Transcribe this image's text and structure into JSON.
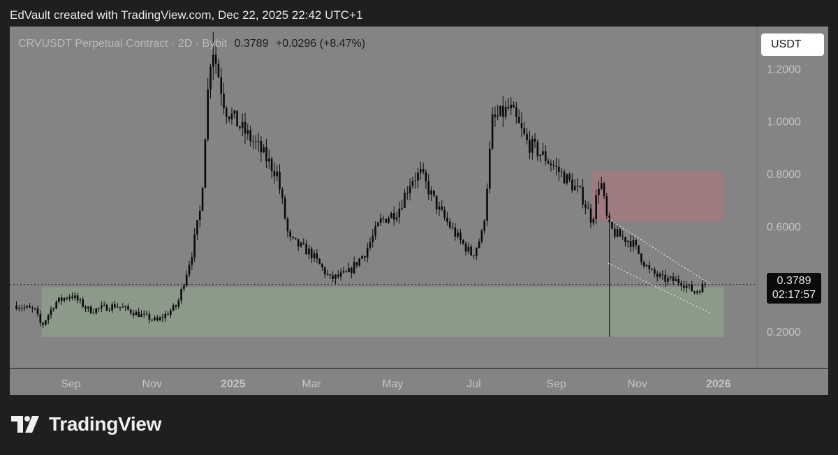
{
  "header": {
    "credit": "EdVault created with TradingView.com, Dec 22, 2025 22:42 UTC+1"
  },
  "legend": {
    "symbol": "CRVUSDT Perpetual Contract · 2D · Bybit",
    "price": "0.3789",
    "change": "+0.0296 (+8.47%)"
  },
  "toolbar": {
    "currency": "USDT"
  },
  "price_label": {
    "price": "0.3789",
    "countdown": "02:17:57"
  },
  "footer": {
    "brand": "TradingView"
  },
  "colors": {
    "panel": "#848484",
    "candle": "#0a0a0a",
    "wick": "#0a0a0a",
    "support_zone": "#8c9a8a",
    "resistance_zone": "#9e7b7e",
    "channel_line": "#e8e8e8"
  },
  "chart_data": {
    "type": "candlestick",
    "title": "CRVUSDT Perpetual Contract · 2D · Bybit",
    "xlabel": "",
    "ylabel": "",
    "ylim": [
      0.06,
      1.36
    ],
    "grid": false,
    "y_ticks": [
      "1.2000",
      "1.0000",
      "0.8000",
      "0.6000",
      "0.2000"
    ],
    "x_ticks": [
      "Sep",
      "Nov",
      "2025",
      "Mar",
      "May",
      "Jul",
      "Sep",
      "Nov",
      "2026"
    ],
    "bold_x_ticks": [
      "2025",
      "2026"
    ],
    "current_price": 0.3789,
    "zones": [
      {
        "name": "support",
        "y0": 0.18,
        "y1": 0.37
      },
      {
        "name": "resistance",
        "y0": 0.62,
        "y1": 0.81
      }
    ],
    "price_path": [
      [
        "2024-07-22",
        0.3
      ],
      [
        "2024-08-05",
        0.28
      ],
      [
        "2024-08-10",
        0.22
      ],
      [
        "2024-08-20",
        0.31
      ],
      [
        "2024-09-01",
        0.34
      ],
      [
        "2024-09-15",
        0.28
      ],
      [
        "2024-10-05",
        0.3
      ],
      [
        "2024-10-20",
        0.27
      ],
      [
        "2024-11-05",
        0.24
      ],
      [
        "2024-11-20",
        0.3
      ],
      [
        "2024-12-01",
        0.5
      ],
      [
        "2024-12-08",
        0.68
      ],
      [
        "2024-12-12",
        1.05
      ],
      [
        "2024-12-16",
        1.3
      ],
      [
        "2024-12-26",
        1.05
      ],
      [
        "2025-01-06",
        0.98
      ],
      [
        "2025-01-20",
        0.9
      ],
      [
        "2025-02-03",
        0.8
      ],
      [
        "2025-02-12",
        0.55
      ],
      [
        "2025-02-28",
        0.5
      ],
      [
        "2025-03-15",
        0.4
      ],
      [
        "2025-03-28",
        0.42
      ],
      [
        "2025-04-10",
        0.5
      ],
      [
        "2025-04-22",
        0.62
      ],
      [
        "2025-05-05",
        0.66
      ],
      [
        "2025-05-15",
        0.78
      ],
      [
        "2025-05-22",
        0.8
      ],
      [
        "2025-06-05",
        0.66
      ],
      [
        "2025-06-20",
        0.55
      ],
      [
        "2025-06-30",
        0.49
      ],
      [
        "2025-07-08",
        0.58
      ],
      [
        "2025-07-15",
        1.0
      ],
      [
        "2025-07-28",
        1.05
      ],
      [
        "2025-08-10",
        0.92
      ],
      [
        "2025-08-24",
        0.86
      ],
      [
        "2025-09-05",
        0.8
      ],
      [
        "2025-09-20",
        0.72
      ],
      [
        "2025-09-28",
        0.62
      ],
      [
        "2025-10-04",
        0.79
      ],
      [
        "2025-10-10",
        0.6
      ],
      [
        "2025-10-16",
        0.57
      ],
      [
        "2025-10-28",
        0.54
      ],
      [
        "2025-11-10",
        0.43
      ],
      [
        "2025-11-20",
        0.4
      ],
      [
        "2025-12-04",
        0.39
      ],
      [
        "2025-12-14",
        0.35
      ],
      [
        "2025-12-22",
        0.3789
      ]
    ],
    "wick_extremes": [
      {
        "date": "2024-12-16",
        "high": 1.34
      },
      {
        "date": "2025-10-10",
        "low": 0.18
      }
    ],
    "channel": [
      {
        "x0": "2025-10-10",
        "y0": 0.63,
        "x1": "2025-12-26",
        "y1": 0.38
      },
      {
        "x0": "2025-10-10",
        "y0": 0.46,
        "x1": "2025-12-26",
        "y1": 0.27
      }
    ]
  }
}
